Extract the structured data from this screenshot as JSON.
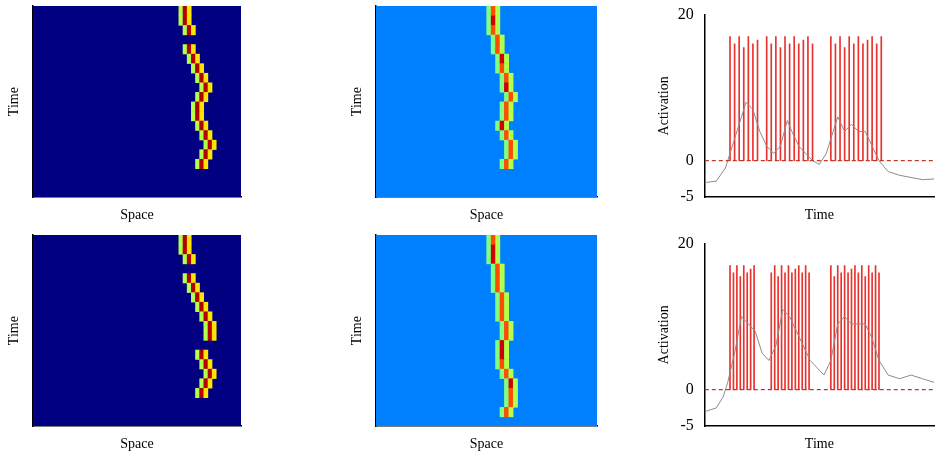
{
  "chart_data": [
    {
      "type": "heatmap",
      "x_label": "Space",
      "y_label": "Time",
      "xlim": [
        0,
        50
      ],
      "ylim": [
        0,
        20
      ],
      "tick_labels": false,
      "color_range": [
        0,
        1
      ],
      "background": 0,
      "cells": [
        [
          35,
          0,
          0.55
        ],
        [
          36,
          0,
          0.95
        ],
        [
          37,
          0,
          0.65
        ],
        [
          35,
          1,
          0.55
        ],
        [
          36,
          1,
          0.95
        ],
        [
          37,
          1,
          0.65
        ],
        [
          36,
          2,
          0.55
        ],
        [
          37,
          2,
          0.95
        ],
        [
          38,
          2,
          0.65
        ],
        [
          36,
          4,
          0.55
        ],
        [
          37,
          4,
          0.95
        ],
        [
          38,
          4,
          0.65
        ],
        [
          37,
          5,
          0.55
        ],
        [
          38,
          5,
          0.95
        ],
        [
          39,
          5,
          0.65
        ],
        [
          38,
          6,
          0.55
        ],
        [
          39,
          6,
          0.95
        ],
        [
          40,
          6,
          0.65
        ],
        [
          39,
          7,
          0.55
        ],
        [
          40,
          7,
          0.95
        ],
        [
          41,
          7,
          0.65
        ],
        [
          40,
          8,
          0.55
        ],
        [
          41,
          8,
          0.95
        ],
        [
          42,
          8,
          0.65
        ],
        [
          39,
          9,
          0.55
        ],
        [
          40,
          9,
          0.95
        ],
        [
          41,
          9,
          0.65
        ],
        [
          38,
          10,
          0.55
        ],
        [
          39,
          10,
          0.95
        ],
        [
          40,
          10,
          0.65
        ],
        [
          38,
          11,
          0.55
        ],
        [
          39,
          11,
          0.95
        ],
        [
          40,
          11,
          0.65
        ],
        [
          39,
          12,
          0.55
        ],
        [
          40,
          12,
          0.95
        ],
        [
          41,
          12,
          0.65
        ],
        [
          40,
          13,
          0.55
        ],
        [
          41,
          13,
          0.95
        ],
        [
          42,
          13,
          0.65
        ],
        [
          41,
          14,
          0.55
        ],
        [
          42,
          14,
          0.95
        ],
        [
          43,
          14,
          0.65
        ],
        [
          40,
          15,
          0.55
        ],
        [
          41,
          15,
          0.95
        ],
        [
          42,
          15,
          0.65
        ],
        [
          39,
          16,
          0.55
        ],
        [
          40,
          16,
          0.95
        ],
        [
          41,
          16,
          0.65
        ]
      ]
    },
    {
      "type": "heatmap",
      "x_label": "Space",
      "y_label": "Time",
      "xlim": [
        0,
        50
      ],
      "ylim": [
        0,
        20
      ],
      "tick_labels": false,
      "color_range": [
        0,
        1
      ],
      "background": 0.25,
      "cells": [
        [
          25,
          0,
          0.5
        ],
        [
          26,
          0,
          0.8
        ],
        [
          27,
          0,
          0.55
        ],
        [
          25,
          1,
          0.5
        ],
        [
          26,
          1,
          0.92
        ],
        [
          27,
          1,
          0.55
        ],
        [
          25,
          2,
          0.5
        ],
        [
          26,
          2,
          0.8
        ],
        [
          27,
          2,
          0.55
        ],
        [
          26,
          3,
          0.5
        ],
        [
          27,
          3,
          0.8
        ],
        [
          28,
          3,
          0.55
        ],
        [
          26,
          4,
          0.5
        ],
        [
          27,
          4,
          0.8
        ],
        [
          28,
          4,
          0.55
        ],
        [
          27,
          5,
          0.5
        ],
        [
          28,
          5,
          0.92
        ],
        [
          29,
          5,
          0.55
        ],
        [
          27,
          6,
          0.5
        ],
        [
          28,
          6,
          0.8
        ],
        [
          29,
          6,
          0.55
        ],
        [
          28,
          7,
          0.5
        ],
        [
          29,
          7,
          0.8
        ],
        [
          30,
          7,
          0.55
        ],
        [
          28,
          8,
          0.5
        ],
        [
          29,
          8,
          0.92
        ],
        [
          30,
          8,
          0.55
        ],
        [
          29,
          9,
          0.5
        ],
        [
          30,
          9,
          0.8
        ],
        [
          31,
          9,
          0.55
        ],
        [
          28,
          10,
          0.5
        ],
        [
          29,
          10,
          0.8
        ],
        [
          30,
          10,
          0.55
        ],
        [
          28,
          11,
          0.5
        ],
        [
          29,
          11,
          0.8
        ],
        [
          30,
          11,
          0.55
        ],
        [
          27,
          12,
          0.5
        ],
        [
          28,
          12,
          0.92
        ],
        [
          29,
          12,
          0.55
        ],
        [
          28,
          13,
          0.5
        ],
        [
          29,
          13,
          0.8
        ],
        [
          30,
          13,
          0.55
        ],
        [
          29,
          14,
          0.5
        ],
        [
          30,
          14,
          0.8
        ],
        [
          31,
          14,
          0.55
        ],
        [
          29,
          15,
          0.5
        ],
        [
          30,
          15,
          0.8
        ],
        [
          31,
          15,
          0.55
        ],
        [
          28,
          16,
          0.5
        ],
        [
          29,
          16,
          0.8
        ],
        [
          30,
          16,
          0.55
        ]
      ]
    },
    {
      "type": "line",
      "x_label": "Time",
      "y_label": "Activation",
      "xlim": [
        0,
        100
      ],
      "ylim": [
        -5,
        20
      ],
      "yticks": [
        -5,
        0,
        20
      ],
      "tick_labels": "y",
      "series": [
        {
          "type": "bar",
          "color": "#e8322e",
          "x": [
            11,
            13,
            15,
            17,
            19,
            21,
            23,
            27,
            29,
            31,
            33,
            35,
            37,
            39,
            41,
            43,
            45,
            47,
            55,
            57,
            59,
            61,
            63,
            65,
            67,
            69,
            71,
            73,
            75,
            77
          ],
          "values": [
            17,
            16,
            17,
            15.5,
            17,
            16,
            16.5,
            17,
            16,
            17,
            15.5,
            17,
            16,
            17,
            16,
            16.5,
            17,
            16,
            17,
            16,
            17,
            15.5,
            17,
            16,
            17,
            16,
            16.5,
            17,
            16,
            17
          ]
        },
        {
          "type": "line",
          "color": "#8c8c8c",
          "x": [
            0,
            5,
            9,
            10,
            13,
            16,
            18,
            21,
            24,
            27,
            30,
            33,
            36,
            38,
            41,
            44,
            47,
            50,
            53,
            56,
            58,
            61,
            64,
            67,
            70,
            73,
            76,
            80,
            85,
            90,
            95,
            100
          ],
          "values": [
            -3,
            -2.8,
            -1,
            0,
            3,
            6,
            8,
            7,
            4,
            2,
            1,
            2,
            5.5,
            4,
            2,
            1,
            0,
            -0.5,
            1,
            4,
            6,
            4,
            5,
            4,
            4,
            2,
            0,
            -1.5,
            -2,
            -2.3,
            -2.6,
            -2.5
          ]
        },
        {
          "type": "line",
          "color": "#c0392b",
          "line_style": "dashed",
          "x": [
            0,
            100
          ],
          "values": [
            0,
            0
          ]
        }
      ]
    },
    {
      "type": "heatmap",
      "x_label": "Space",
      "y_label": "Time",
      "xlim": [
        0,
        50
      ],
      "ylim": [
        0,
        20
      ],
      "tick_labels": false,
      "color_range": [
        0,
        1
      ],
      "background": 0,
      "cells": [
        [
          35,
          0,
          0.55
        ],
        [
          36,
          0,
          0.95
        ],
        [
          37,
          0,
          0.65
        ],
        [
          35,
          1,
          0.55
        ],
        [
          36,
          1,
          0.95
        ],
        [
          37,
          1,
          0.65
        ],
        [
          36,
          2,
          0.55
        ],
        [
          37,
          2,
          0.95
        ],
        [
          38,
          2,
          0.65
        ],
        [
          36,
          4,
          0.55
        ],
        [
          37,
          4,
          0.95
        ],
        [
          38,
          4,
          0.65
        ],
        [
          37,
          5,
          0.55
        ],
        [
          38,
          5,
          0.95
        ],
        [
          39,
          5,
          0.65
        ],
        [
          38,
          6,
          0.55
        ],
        [
          39,
          6,
          0.95
        ],
        [
          40,
          6,
          0.65
        ],
        [
          39,
          7,
          0.55
        ],
        [
          40,
          7,
          0.95
        ],
        [
          41,
          7,
          0.65
        ],
        [
          40,
          8,
          0.55
        ],
        [
          41,
          8,
          0.95
        ],
        [
          42,
          8,
          0.65
        ],
        [
          41,
          9,
          0.55
        ],
        [
          42,
          9,
          0.95
        ],
        [
          43,
          9,
          0.65
        ],
        [
          41,
          10,
          0.55
        ],
        [
          42,
          10,
          0.95
        ],
        [
          43,
          10,
          0.65
        ],
        [
          39,
          12,
          0.55
        ],
        [
          40,
          12,
          0.95
        ],
        [
          41,
          12,
          0.65
        ],
        [
          40,
          13,
          0.55
        ],
        [
          41,
          13,
          0.95
        ],
        [
          42,
          13,
          0.65
        ],
        [
          41,
          14,
          0.55
        ],
        [
          42,
          14,
          0.95
        ],
        [
          43,
          14,
          0.65
        ],
        [
          40,
          15,
          0.55
        ],
        [
          41,
          15,
          0.95
        ],
        [
          42,
          15,
          0.65
        ],
        [
          39,
          16,
          0.55
        ],
        [
          40,
          16,
          0.95
        ],
        [
          41,
          16,
          0.65
        ]
      ]
    },
    {
      "type": "heatmap",
      "x_label": "Space",
      "y_label": "Time",
      "xlim": [
        0,
        50
      ],
      "ylim": [
        0,
        20
      ],
      "tick_labels": false,
      "color_range": [
        0,
        1
      ],
      "background": 0.25,
      "cells": [
        [
          25,
          0,
          0.5
        ],
        [
          26,
          0,
          0.8
        ],
        [
          27,
          0,
          0.55
        ],
        [
          25,
          1,
          0.5
        ],
        [
          26,
          1,
          0.92
        ],
        [
          27,
          1,
          0.55
        ],
        [
          25,
          2,
          0.5
        ],
        [
          26,
          2,
          0.92
        ],
        [
          27,
          2,
          0.55
        ],
        [
          26,
          3,
          0.5
        ],
        [
          27,
          3,
          0.8
        ],
        [
          28,
          3,
          0.55
        ],
        [
          26,
          4,
          0.5
        ],
        [
          27,
          4,
          0.8
        ],
        [
          28,
          4,
          0.55
        ],
        [
          26,
          5,
          0.5
        ],
        [
          27,
          5,
          0.8
        ],
        [
          28,
          5,
          0.55
        ],
        [
          27,
          6,
          0.5
        ],
        [
          28,
          6,
          0.8
        ],
        [
          29,
          6,
          0.55
        ],
        [
          27,
          7,
          0.5
        ],
        [
          28,
          7,
          0.8
        ],
        [
          29,
          7,
          0.55
        ],
        [
          27,
          8,
          0.5
        ],
        [
          28,
          8,
          0.8
        ],
        [
          29,
          8,
          0.55
        ],
        [
          28,
          9,
          0.5
        ],
        [
          29,
          9,
          0.8
        ],
        [
          30,
          9,
          0.55
        ],
        [
          28,
          10,
          0.5
        ],
        [
          29,
          10,
          0.8
        ],
        [
          30,
          10,
          0.55
        ],
        [
          27,
          11,
          0.5
        ],
        [
          28,
          11,
          0.92
        ],
        [
          29,
          11,
          0.55
        ],
        [
          27,
          12,
          0.5
        ],
        [
          28,
          12,
          0.92
        ],
        [
          29,
          12,
          0.55
        ],
        [
          27,
          13,
          0.5
        ],
        [
          28,
          13,
          0.8
        ],
        [
          29,
          13,
          0.55
        ],
        [
          28,
          14,
          0.5
        ],
        [
          29,
          14,
          0.8
        ],
        [
          30,
          14,
          0.55
        ],
        [
          29,
          15,
          0.5
        ],
        [
          30,
          15,
          0.92
        ],
        [
          31,
          15,
          0.55
        ],
        [
          29,
          16,
          0.5
        ],
        [
          30,
          16,
          0.8
        ],
        [
          31,
          16,
          0.55
        ],
        [
          29,
          17,
          0.5
        ],
        [
          30,
          17,
          0.8
        ],
        [
          31,
          17,
          0.55
        ],
        [
          28,
          18,
          0.5
        ],
        [
          29,
          18,
          0.8
        ],
        [
          30,
          18,
          0.55
        ]
      ]
    },
    {
      "type": "line",
      "x_label": "Time",
      "y_label": "Activation",
      "xlim": [
        0,
        100
      ],
      "ylim": [
        -5,
        20
      ],
      "yticks": [
        -5,
        0,
        20
      ],
      "tick_labels": "y",
      "series": [
        {
          "type": "bar",
          "color": "#e8322e",
          "x": [
            11,
            12.5,
            14,
            15.5,
            17,
            18.5,
            20,
            21.5,
            29,
            30.5,
            32,
            33.5,
            35,
            36.5,
            38,
            39.5,
            41,
            42.5,
            44,
            45.5,
            55,
            56.5,
            58,
            59.5,
            61,
            62.5,
            64,
            65.5,
            67,
            68.5,
            70,
            71.5,
            73,
            74.5,
            76
          ],
          "values": [
            17,
            16,
            17,
            15.5,
            17,
            16,
            16.5,
            17,
            16,
            17,
            15.5,
            17,
            16,
            17,
            16,
            16.5,
            17,
            16,
            17,
            16,
            17,
            15.5,
            17,
            16,
            17,
            16,
            16.5,
            17,
            16,
            17,
            15.5,
            17,
            16,
            17,
            16
          ]
        },
        {
          "type": "line",
          "color": "#8c8c8c",
          "x": [
            0,
            5,
            8,
            10,
            13,
            16,
            19,
            22,
            25,
            28,
            31,
            34,
            37,
            40,
            43,
            46,
            49,
            52,
            55,
            58,
            61,
            64,
            67,
            70,
            73,
            76,
            80,
            85,
            90,
            95,
            100
          ],
          "values": [
            -3,
            -2.5,
            -1,
            1,
            5,
            10,
            9,
            8,
            5,
            4,
            6,
            11,
            10,
            8,
            6,
            4,
            3,
            2,
            4,
            9,
            10,
            9,
            9,
            9,
            7,
            4,
            2,
            1.5,
            2,
            1.5,
            1
          ]
        },
        {
          "type": "line",
          "color": "#c0392b",
          "line_style": "dashed",
          "x": [
            0,
            100
          ],
          "values": [
            0,
            0
          ]
        }
      ]
    }
  ]
}
